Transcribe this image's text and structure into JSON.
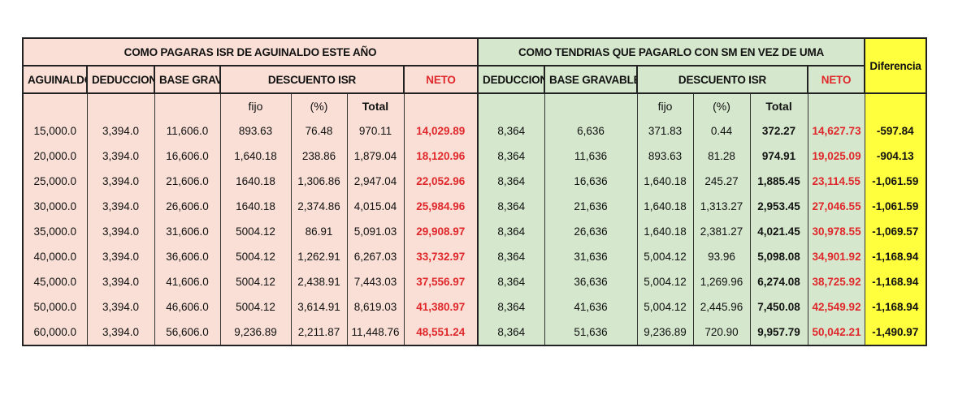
{
  "headers": {
    "left_title": "COMO PAGARAS ISR DE AGUINALDO ESTE AÑO",
    "right_title": "COMO TENDRIAS QUE PAGARLO CON SM EN VEZ DE UMA",
    "diferencia": "Diferencia",
    "aguinaldo": "AGUINALDO",
    "deduccion": "DEDUCCION",
    "base_grav": "BASE GRAV.",
    "descuento_isr": "DESCUENTO ISR",
    "neto": "NETO",
    "deduccion_r": "DEDUCCION",
    "base_gravable": "BASE GRAVABLE",
    "descuento_isr_r": "DESCUENTO ISR",
    "neto_r": "NETO",
    "fijo": "fijo",
    "pct": "(%)",
    "total": "Total",
    "fijo_r": "fijo",
    "pct_r": "(%)",
    "total_r": "Total"
  },
  "rows": [
    [
      "15,000.0",
      "3,394.0",
      "11,606.0",
      "893.63",
      "76.48",
      "970.11",
      "14,029.89",
      "8,364",
      "6,636",
      "371.83",
      "0.44",
      "372.27",
      "14,627.73",
      "-597.84"
    ],
    [
      "20,000.0",
      "3,394.0",
      "16,606.0",
      "1,640.18",
      "238.86",
      "1,879.04",
      "18,120.96",
      "8,364",
      "11,636",
      "893.63",
      "81.28",
      "974.91",
      "19,025.09",
      "-904.13"
    ],
    [
      "25,000.0",
      "3,394.0",
      "21,606.0",
      "1640.18",
      "1,306.86",
      "2,947.04",
      "22,052.96",
      "8,364",
      "16,636",
      "1,640.18",
      "245.27",
      "1,885.45",
      "23,114.55",
      "-1,061.59"
    ],
    [
      "30,000.0",
      "3,394.0",
      "26,606.0",
      "1640.18",
      "2,374.86",
      "4,015.04",
      "25,984.96",
      "8,364",
      "21,636",
      "1,640.18",
      "1,313.27",
      "2,953.45",
      "27,046.55",
      "-1,061.59"
    ],
    [
      "35,000.0",
      "3,394.0",
      "31,606.0",
      "5004.12",
      "86.91",
      "5,091.03",
      "29,908.97",
      "8,364",
      "26,636",
      "1,640.18",
      "2,381.27",
      "4,021.45",
      "30,978.55",
      "-1,069.57"
    ],
    [
      "40,000.0",
      "3,394.0",
      "36,606.0",
      "5004.12",
      "1,262.91",
      "6,267.03",
      "33,732.97",
      "8,364",
      "31,636",
      "5,004.12",
      "93.96",
      "5,098.08",
      "34,901.92",
      "-1,168.94"
    ],
    [
      "45,000.0",
      "3,394.0",
      "41,606.0",
      "5004.12",
      "2,438.91",
      "7,443.03",
      "37,556.97",
      "8,364",
      "36,636",
      "5,004.12",
      "1,269.96",
      "6,274.08",
      "38,725.92",
      "-1,168.94"
    ],
    [
      "50,000.0",
      "3,394.0",
      "46,606.0",
      "5004.12",
      "3,614.91",
      "8,619.03",
      "41,380.97",
      "8,364",
      "41,636",
      "5,004.12",
      "2,445.96",
      "7,450.08",
      "42,549.92",
      "-1,168.94"
    ],
    [
      "60,000.0",
      "3,394.0",
      "56,606.0",
      "9,236.89",
      "2,211.87",
      "11,448.76",
      "48,551.24",
      "8,364",
      "51,636",
      "9,236.89",
      "720.90",
      "9,957.79",
      "50,042.21",
      "-1,490.97"
    ]
  ]
}
